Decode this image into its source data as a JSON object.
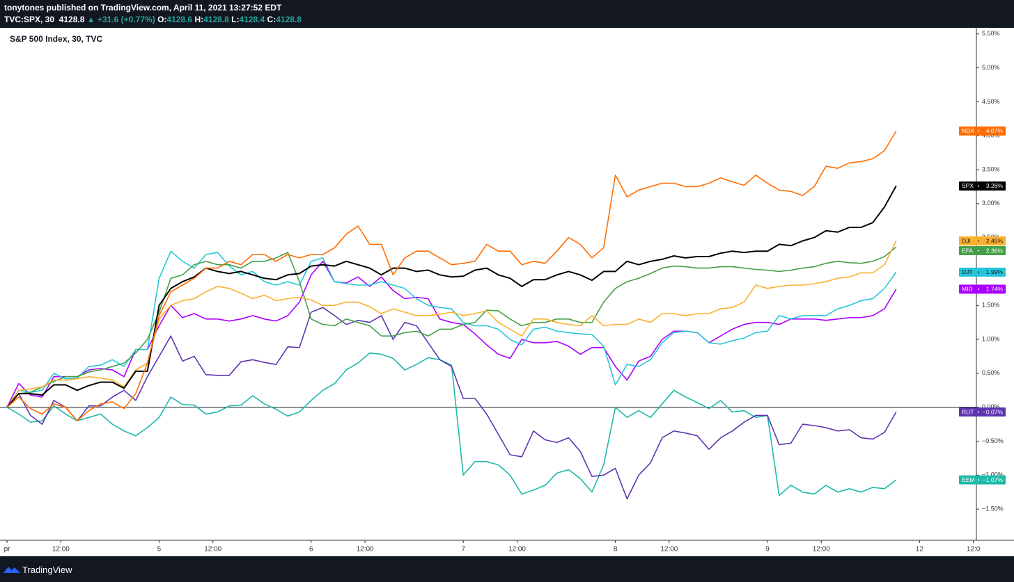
{
  "header": {
    "byline": "tonytones published on TradingView.com, April 11, 2021 13:27:52 EDT",
    "symbol": "TVC:SPX, 30",
    "price": "4128.8",
    "arrow": "▲",
    "change": "+31.6 (+0.77%)",
    "ohlc": [
      {
        "label": "O:",
        "value": "4128.6"
      },
      {
        "label": "H:",
        "value": "4128.8"
      },
      {
        "label": "L:",
        "value": "4128.4"
      },
      {
        "label": "C:",
        "value": "4128.8"
      }
    ]
  },
  "footer": {
    "brand": "TradingView"
  },
  "chart_data": {
    "type": "line",
    "title": "S&P 500 Index, 30, TVC",
    "grid": false,
    "x": [
      0,
      1,
      2,
      3,
      4,
      5,
      6,
      7,
      8,
      9,
      10,
      11,
      12,
      13,
      14,
      15,
      16,
      17,
      18,
      19,
      20,
      21,
      22,
      23,
      24,
      25,
      26,
      27,
      28,
      29,
      30,
      31,
      32,
      33,
      34,
      35,
      36,
      37,
      38,
      39,
      40,
      41,
      42,
      43,
      44,
      45,
      46,
      47,
      48,
      49,
      50,
      51,
      52,
      53,
      54,
      55,
      56,
      57,
      58,
      59,
      60,
      61,
      62,
      63,
      64,
      65,
      66,
      67,
      68,
      69,
      70,
      71,
      72,
      73,
      74,
      75,
      76
    ],
    "xlim": [
      -0.6,
      82.86
    ],
    "xticks": [
      {
        "value": 0,
        "label": "pr"
      },
      {
        "value": 4.6,
        "label": "12:00"
      },
      {
        "value": 13,
        "label": "5"
      },
      {
        "value": 17.6,
        "label": "12:00"
      },
      {
        "value": 26,
        "label": "6"
      },
      {
        "value": 30.6,
        "label": "12:00"
      },
      {
        "value": 39,
        "label": "7"
      },
      {
        "value": 43.6,
        "label": "12:00"
      },
      {
        "value": 52,
        "label": "8"
      },
      {
        "value": 56.6,
        "label": "12:00"
      },
      {
        "value": 65,
        "label": "9"
      },
      {
        "value": 69.6,
        "label": "12:00"
      },
      {
        "value": 78,
        "label": "12"
      },
      {
        "value": 82.6,
        "label": "12:0"
      }
    ],
    "ylim": [
      -1.96,
      5.59
    ],
    "yticks": [
      {
        "value": -1.5,
        "label": "−1.50%"
      },
      {
        "value": -1,
        "label": "−1.00%"
      },
      {
        "value": -0.5,
        "label": "−0.50%"
      },
      {
        "value": 0,
        "label": "0.00%"
      },
      {
        "value": 0.5,
        "label": "0.50%"
      },
      {
        "value": 1,
        "label": "1.00%"
      },
      {
        "value": 1.5,
        "label": "1.50%"
      },
      {
        "value": 2,
        "label": "2.00%"
      },
      {
        "value": 2.5,
        "label": "2.50%"
      },
      {
        "value": 3,
        "label": "3.00%"
      },
      {
        "value": 3.5,
        "label": "3.50%"
      },
      {
        "value": 4,
        "label": "4.00%"
      },
      {
        "value": 4.5,
        "label": "4.50%"
      },
      {
        "value": 5,
        "label": "5.00%"
      },
      {
        "value": 5.5,
        "label": "5.50%"
      }
    ],
    "series": [
      {
        "name": "EEM",
        "color": "#1db9a9",
        "tag": "−1.07%",
        "values": [
          0,
          -0.1,
          -0.22,
          -0.2,
          0.02,
          -0.1,
          -0.2,
          -0.15,
          -0.1,
          -0.25,
          -0.35,
          -0.42,
          -0.3,
          -0.15,
          0.15,
          0.04,
          0.03,
          -0.1,
          -0.07,
          0.02,
          0.03,
          0.17,
          0.05,
          -0.03,
          -0.13,
          -0.07,
          0.1,
          0.25,
          0.35,
          0.55,
          0.65,
          0.8,
          0.78,
          0.72,
          0.55,
          0.63,
          0.73,
          0.7,
          0.62,
          -1.0,
          -0.8,
          -0.8,
          -0.85,
          -1.0,
          -1.28,
          -1.22,
          -1.15,
          -0.97,
          -0.92,
          -1.05,
          -1.25,
          -0.85,
          0.0,
          -0.15,
          -0.05,
          -0.15,
          0.05,
          0.25,
          0.15,
          0.07,
          -0.02,
          0.1,
          -0.07,
          -0.05,
          -0.15,
          -0.12,
          -1.3,
          -1.15,
          -1.25,
          -1.28,
          -1.15,
          -1.25,
          -1.2,
          -1.25,
          -1.18,
          -1.2,
          -1.07
        ]
      },
      {
        "name": "RUT",
        "color": "#5e35b1",
        "tag": "−0.07%",
        "values": [
          0,
          0.2,
          -0.12,
          -0.25,
          0.1,
          0.0,
          -0.2,
          0.02,
          0.02,
          0.15,
          0.25,
          0.1,
          0.45,
          0.75,
          1.05,
          0.68,
          0.75,
          0.48,
          0.47,
          0.47,
          0.67,
          0.7,
          0.66,
          0.63,
          0.89,
          0.88,
          1.4,
          1.47,
          1.35,
          1.22,
          1.28,
          1.25,
          1.35,
          1.0,
          1.25,
          1.2,
          0.95,
          0.7,
          0.6,
          0.13,
          0.13,
          -0.1,
          -0.4,
          -0.7,
          -0.73,
          -0.35,
          -0.48,
          -0.52,
          -0.45,
          -0.65,
          -1.02,
          -1.0,
          -0.9,
          -1.35,
          -1.0,
          -0.82,
          -0.45,
          -0.35,
          -0.38,
          -0.42,
          -0.62,
          -0.45,
          -0.35,
          -0.22,
          -0.12,
          -0.12,
          -0.55,
          -0.53,
          -0.25,
          -0.27,
          -0.3,
          -0.35,
          -0.33,
          -0.45,
          -0.47,
          -0.37,
          -0.07
        ]
      },
      {
        "name": "MID",
        "color": "#aa00ff",
        "tag": "1.74%",
        "values": [
          0,
          0.35,
          0.18,
          0.15,
          0.45,
          0.45,
          0.45,
          0.55,
          0.57,
          0.55,
          0.45,
          0.85,
          0.85,
          1.2,
          1.5,
          1.32,
          1.38,
          1.3,
          1.3,
          1.27,
          1.3,
          1.35,
          1.3,
          1.27,
          1.35,
          1.55,
          1.95,
          2.15,
          1.85,
          1.83,
          1.92,
          1.78,
          1.92,
          1.72,
          1.6,
          1.62,
          1.6,
          1.3,
          1.25,
          1.22,
          1.08,
          0.92,
          0.78,
          0.72,
          1.0,
          0.95,
          0.95,
          0.97,
          0.9,
          0.78,
          0.88,
          0.88,
          0.6,
          0.4,
          0.68,
          0.75,
          1.0,
          1.12,
          1.12,
          1.1,
          0.95,
          1.05,
          1.15,
          1.22,
          1.25,
          1.25,
          1.22,
          1.3,
          1.3,
          1.3,
          1.28,
          1.3,
          1.32,
          1.32,
          1.35,
          1.45,
          1.74
        ]
      },
      {
        "name": "DJT",
        "color": "#26c6da",
        "tag": "1.99%",
        "values": [
          0,
          0.25,
          0.22,
          0.25,
          0.5,
          0.42,
          0.43,
          0.6,
          0.62,
          0.7,
          0.6,
          0.85,
          0.85,
          1.9,
          2.3,
          2.15,
          2.05,
          2.25,
          2.28,
          2.08,
          1.95,
          2.0,
          1.85,
          1.8,
          1.85,
          1.8,
          2.15,
          2.2,
          1.85,
          1.82,
          1.8,
          1.8,
          1.85,
          1.8,
          1.75,
          1.6,
          1.5,
          1.47,
          1.45,
          1.25,
          1.2,
          1.2,
          1.15,
          1.0,
          0.92,
          1.15,
          1.18,
          1.12,
          1.1,
          1.08,
          1.07,
          0.9,
          0.33,
          0.63,
          0.6,
          0.7,
          0.95,
          1.1,
          1.12,
          1.1,
          0.95,
          0.93,
          0.98,
          1.02,
          1.1,
          1.12,
          1.35,
          1.3,
          1.35,
          1.35,
          1.35,
          1.45,
          1.5,
          1.57,
          1.6,
          1.75,
          1.99
        ]
      },
      {
        "name": "EFA",
        "color": "#43a047",
        "tag": "2.36%",
        "values": [
          0,
          0.2,
          0.22,
          0.3,
          0.38,
          0.45,
          0.45,
          0.52,
          0.55,
          0.6,
          0.65,
          0.8,
          1.0,
          1.4,
          1.9,
          1.95,
          2.1,
          2.15,
          2.1,
          2.1,
          2.05,
          2.15,
          2.15,
          2.2,
          2.28,
          1.85,
          1.3,
          1.22,
          1.2,
          1.3,
          1.25,
          1.2,
          1.05,
          1.05,
          1.1,
          1.12,
          1.05,
          1.15,
          1.15,
          1.22,
          1.25,
          1.43,
          1.42,
          1.3,
          1.2,
          1.25,
          1.25,
          1.3,
          1.3,
          1.25,
          1.25,
          1.55,
          1.75,
          1.85,
          1.9,
          1.97,
          2.05,
          2.08,
          2.07,
          2.05,
          2.05,
          2.07,
          2.07,
          2.05,
          2.03,
          2.02,
          2.0,
          2.02,
          2.05,
          2.07,
          2.12,
          2.15,
          2.13,
          2.12,
          2.15,
          2.22,
          2.36
        ]
      },
      {
        "name": "DJI",
        "color": "#fbb02d",
        "tag": "2.45%",
        "values": [
          0,
          0.25,
          0.27,
          0.3,
          0.4,
          0.4,
          0.42,
          0.45,
          0.43,
          0.4,
          0.3,
          0.55,
          0.65,
          1.3,
          1.5,
          1.57,
          1.6,
          1.7,
          1.78,
          1.75,
          1.68,
          1.6,
          1.65,
          1.57,
          1.6,
          1.62,
          1.58,
          1.5,
          1.5,
          1.55,
          1.55,
          1.48,
          1.38,
          1.45,
          1.4,
          1.35,
          1.35,
          1.37,
          1.4,
          1.35,
          1.38,
          1.42,
          1.25,
          1.15,
          1.05,
          1.3,
          1.3,
          1.25,
          1.22,
          1.2,
          1.35,
          1.2,
          1.22,
          1.22,
          1.3,
          1.25,
          1.38,
          1.38,
          1.35,
          1.38,
          1.38,
          1.45,
          1.47,
          1.55,
          1.8,
          1.75,
          1.78,
          1.8,
          1.8,
          1.82,
          1.85,
          1.9,
          1.92,
          1.98,
          1.98,
          2.1,
          2.45
        ]
      },
      {
        "name": "SPX",
        "color": "#000000",
        "tag": "3.26%",
        "values": [
          0,
          0.2,
          0.2,
          0.18,
          0.33,
          0.33,
          0.25,
          0.32,
          0.37,
          0.37,
          0.28,
          0.53,
          0.53,
          1.5,
          1.75,
          1.85,
          1.92,
          2.05,
          2.0,
          1.97,
          2.0,
          1.95,
          1.9,
          1.88,
          1.95,
          1.97,
          2.08,
          2.1,
          2.08,
          2.15,
          2.1,
          2.05,
          1.95,
          2.05,
          2.05,
          2.0,
          2.02,
          1.95,
          1.92,
          1.93,
          2.02,
          2.05,
          1.95,
          1.9,
          1.78,
          1.88,
          1.88,
          1.95,
          2.0,
          1.95,
          1.87,
          2.0,
          2.0,
          2.15,
          2.1,
          2.15,
          2.18,
          2.23,
          2.2,
          2.22,
          2.22,
          2.27,
          2.3,
          2.28,
          2.3,
          2.3,
          2.4,
          2.38,
          2.45,
          2.5,
          2.6,
          2.58,
          2.65,
          2.65,
          2.72,
          2.95,
          3.26
        ]
      },
      {
        "name": "NDX",
        "color": "#ff6d00",
        "tag": "4.07%",
        "values": [
          0,
          0.15,
          -0.02,
          -0.1,
          0.05,
          0.0,
          -0.2,
          -0.05,
          0.05,
          0.08,
          -0.02,
          0.2,
          0.65,
          1.35,
          1.7,
          1.8,
          1.9,
          2.05,
          2.05,
          2.15,
          2.1,
          2.25,
          2.25,
          2.15,
          2.25,
          2.2,
          2.25,
          2.25,
          2.35,
          2.55,
          2.67,
          2.4,
          2.4,
          1.95,
          2.2,
          2.3,
          2.3,
          2.2,
          2.1,
          2.12,
          2.15,
          2.4,
          2.3,
          2.3,
          2.1,
          2.15,
          2.12,
          2.3,
          2.5,
          2.4,
          2.2,
          2.35,
          3.42,
          3.1,
          3.2,
          3.25,
          3.3,
          3.3,
          3.25,
          3.25,
          3.3,
          3.38,
          3.32,
          3.27,
          3.42,
          3.3,
          3.2,
          3.18,
          3.12,
          3.25,
          3.55,
          3.52,
          3.6,
          3.62,
          3.66,
          3.78,
          4.07
        ]
      }
    ]
  }
}
